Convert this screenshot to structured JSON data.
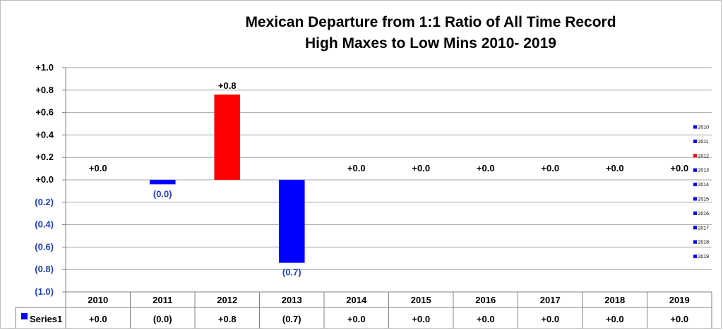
{
  "chart_data": {
    "type": "bar",
    "title_lines": [
      "Mexican Departure from 1:1 Ratio of All Time Record",
      "High Maxes to Low Mins 2010- 2019"
    ],
    "categories": [
      "2010",
      "2011",
      "2012",
      "2013",
      "2014",
      "2015",
      "2016",
      "2017",
      "2018",
      "2019"
    ],
    "series": [
      {
        "name": "Series1",
        "values": [
          0.0,
          -0.04,
          0.76,
          -0.74,
          0.0,
          0.0,
          0.0,
          0.0,
          0.0,
          0.0
        ],
        "data_labels": [
          "+0.0",
          "(0.0)",
          "+0.8",
          "(0.7)",
          "+0.0",
          "+0.0",
          "+0.0",
          "+0.0",
          "+0.0",
          "+0.0"
        ],
        "colors": [
          "#0000ff",
          "#0000ff",
          "#ff0000",
          "#0000ff",
          "#0000ff",
          "#0000ff",
          "#0000ff",
          "#0000ff",
          "#0000ff",
          "#0000ff"
        ]
      }
    ],
    "y_ticks": [
      {
        "value": 1.0,
        "label": "+1.0"
      },
      {
        "value": 0.8,
        "label": "+0.8"
      },
      {
        "value": 0.6,
        "label": "+0.6"
      },
      {
        "value": 0.4,
        "label": "+0.4"
      },
      {
        "value": 0.2,
        "label": "+0.2"
      },
      {
        "value": 0.0,
        "label": "+0.0"
      },
      {
        "value": -0.2,
        "label": "(0.2)"
      },
      {
        "value": -0.4,
        "label": "(0.4)"
      },
      {
        "value": -0.6,
        "label": "(0.6)"
      },
      {
        "value": -0.8,
        "label": "(0.8)"
      },
      {
        "value": -1.0,
        "label": "(1.0)"
      }
    ],
    "ylim": [
      -1.0,
      1.0
    ],
    "grid": true,
    "positive_tick_color": "#000000",
    "negative_tick_color": "#1f3fbf",
    "data_table": {
      "legend_label": "Series1",
      "legend_color": "#0000ff"
    },
    "legend_placement": "right"
  }
}
